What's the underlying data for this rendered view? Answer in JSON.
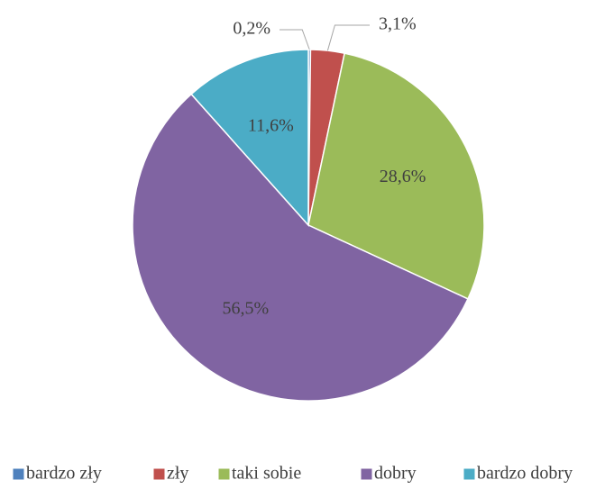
{
  "chart_data": {
    "type": "pie",
    "categories": [
      "bardzo zły",
      "zły",
      "taki sobie",
      "dobry",
      "bardzo dobry"
    ],
    "values": [
      0.2,
      3.1,
      28.6,
      56.5,
      11.6
    ],
    "value_labels": [
      "0,2%",
      "3,1%",
      "28,6%",
      "56,5%",
      "11,6%"
    ],
    "colors": [
      "#4f81bd",
      "#c0504d",
      "#9bbb59",
      "#8064a2",
      "#4bacc6"
    ],
    "legend": "bottom"
  }
}
